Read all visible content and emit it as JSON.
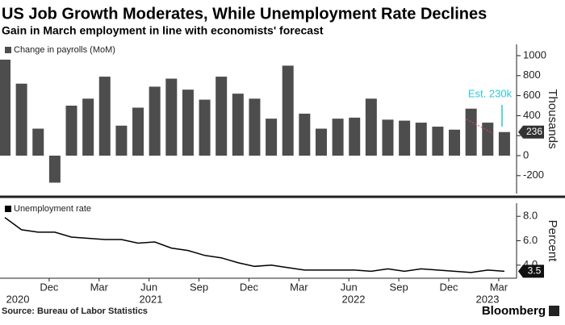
{
  "title": "US Job Growth Moderates, While Unemployment Rate Declines",
  "subtitle": "Gain in March employment in line with economists' forecast",
  "source": "Source: Bureau of Labor Statistics",
  "brand": "Bloomberg",
  "chart_data": [
    {
      "type": "bar",
      "legend": "Change in payrolls (MoM)",
      "y_label": "Thousands",
      "annotation": "Est. 230k",
      "color": "#4d4d4d",
      "values": [
        960,
        720,
        270,
        -270,
        500,
        570,
        790,
        300,
        480,
        690,
        770,
        660,
        560,
        790,
        620,
        570,
        370,
        900,
        420,
        270,
        370,
        380,
        570,
        360,
        350,
        330,
        290,
        260,
        470,
        330,
        236
      ],
      "ylim": [
        -379,
        1113
      ],
      "yticks": [
        -200,
        0,
        200,
        400,
        600,
        800,
        1000
      ]
    },
    {
      "type": "line",
      "legend": "Unemployment rate",
      "y_label": "Percent",
      "color": "#000000",
      "categories": [
        null,
        null,
        null,
        "Dec",
        null,
        null,
        "Mar",
        null,
        null,
        "Jun",
        null,
        null,
        "Sep",
        null,
        null,
        "Dec",
        null,
        null,
        "Mar",
        null,
        null,
        "Jun",
        null,
        null,
        "Sep",
        null,
        null,
        "Dec",
        null,
        null,
        "Mar"
      ],
      "years": [
        "2020",
        "2021",
        "2022",
        "2023"
      ],
      "values": [
        7.9,
        6.9,
        6.7,
        6.7,
        6.3,
        6.2,
        6.1,
        6.1,
        5.8,
        5.9,
        5.4,
        5.2,
        4.8,
        4.6,
        4.2,
        3.9,
        4.0,
        3.8,
        3.6,
        3.6,
        3.6,
        3.6,
        3.5,
        3.7,
        3.5,
        3.7,
        3.6,
        3.5,
        3.4,
        3.6,
        3.5
      ],
      "ylim": [
        2.93,
        9.07
      ],
      "yticks": [
        {
          "value": 8,
          "label": "8.0"
        },
        {
          "value": 6,
          "label": "6.0"
        },
        {
          "value": 4,
          "label": "4.0"
        }
      ]
    }
  ]
}
